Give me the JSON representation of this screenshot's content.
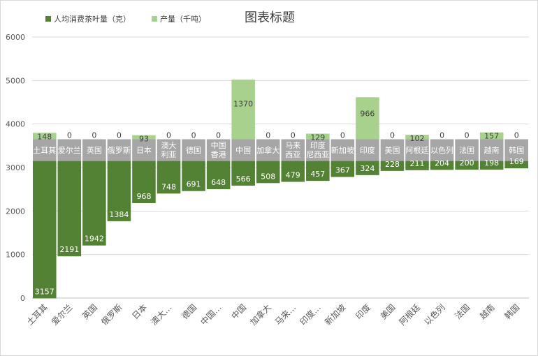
{
  "chart_data": {
    "type": "bar",
    "title": "图表标题",
    "categories": [
      "土耳其",
      "爱尔兰",
      "英国",
      "俄罗斯",
      "日本",
      "澳大利亚",
      "德国",
      "中国香港",
      "中国",
      "加拿大",
      "马来西亚",
      "印度尼西亚",
      "新加坡",
      "印度",
      "美国",
      "阿根廷",
      "以色列",
      "法国",
      "越南",
      "韩国"
    ],
    "bar_labels": [
      "土耳其",
      "爱尔兰",
      "英国",
      "俄罗斯",
      "日本",
      "澳大\n利亚",
      "德国",
      "中国\n香港",
      "中国",
      "加拿大",
      "马来\n西亚",
      "印度\n尼西亚",
      "新加坡",
      "印度",
      "美国",
      "阿根廷",
      "以色列",
      "法国",
      "越南",
      "韩国"
    ],
    "tick_labels": [
      "土耳其",
      "爱尔兰",
      "英国",
      "俄罗斯",
      "日本",
      "澳大…",
      "德国",
      "中国…",
      "中国",
      "加拿大",
      "马来…",
      "印度…",
      "新加坡",
      "印度",
      "美国",
      "阿根廷",
      "以色列",
      "法国",
      "越南",
      "韩国"
    ],
    "series": [
      {
        "name": "人均消费茶叶量（克）",
        "color": "#548235",
        "values": [
          3157,
          2191,
          1942,
          1384,
          968,
          748,
          691,
          648,
          566,
          508,
          479,
          457,
          367,
          324,
          228,
          211,
          204,
          200,
          198,
          169
        ]
      },
      {
        "name": "产量（千吨）",
        "color": "#a9d18e",
        "values": [
          148,
          0,
          0,
          0,
          93,
          0,
          0,
          0,
          1370,
          0,
          0,
          129,
          0,
          966,
          0,
          102,
          0,
          0,
          157,
          0
        ]
      }
    ],
    "ylim": [
      0,
      6000
    ],
    "yticks": [
      0,
      1000,
      2000,
      3000,
      4000,
      5000,
      6000
    ],
    "grid": true,
    "legend": "top-left",
    "label_band_color": "#a6a6a6"
  }
}
